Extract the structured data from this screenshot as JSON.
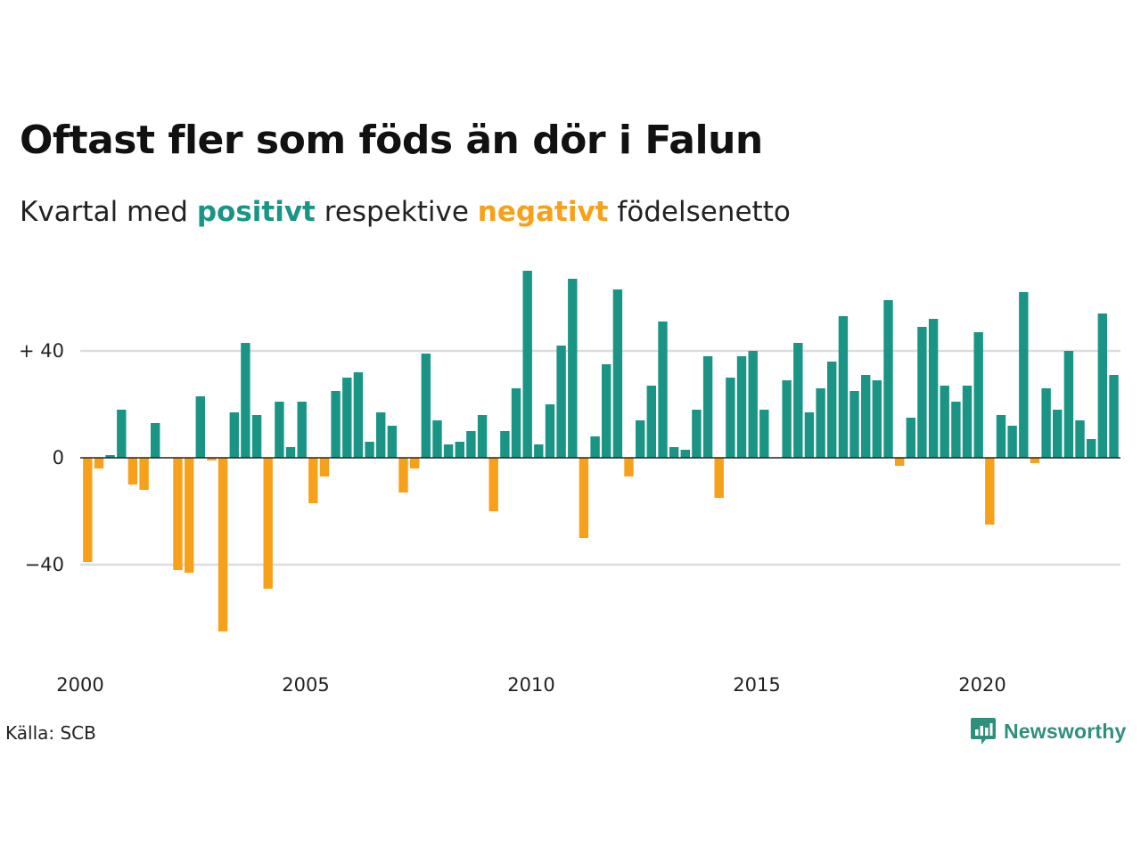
{
  "title": "Oftast fler som föds än dör i Falun",
  "subtitle": {
    "prefix": "Kvartal med",
    "positive": "positivt",
    "middle": "respektive",
    "negative": "negativt",
    "suffix": "födelsenetto"
  },
  "source": "Källa: SCB",
  "brand": {
    "name": "Newsworthy",
    "icon": "newsworthy-logo-icon"
  },
  "colors": {
    "positive": "#1a9585",
    "negative": "#f7a11a",
    "grid": "#dddddd",
    "zero": "#222222"
  },
  "chart_data": {
    "type": "bar",
    "title": "",
    "xlabel": "",
    "ylabel": "",
    "x_start": 2000,
    "period": "quarter",
    "ylim": [
      -70,
      70
    ],
    "yticks": [
      {
        "value": 40,
        "label": "+ 40"
      },
      {
        "value": 0,
        "label": "0"
      },
      {
        "value": -40,
        "label": "−40"
      }
    ],
    "xticks": [
      {
        "value": 2000,
        "label": "2000"
      },
      {
        "value": 2005,
        "label": "2005"
      },
      {
        "value": 2010,
        "label": "2010"
      },
      {
        "value": 2015,
        "label": "2015"
      },
      {
        "value": 2020,
        "label": "2020"
      }
    ],
    "grid": true,
    "values": [
      -39,
      -4,
      1,
      18,
      -10,
      -12,
      13,
      0,
      -42,
      -43,
      23,
      -1,
      -65,
      17,
      43,
      16,
      -49,
      21,
      4,
      21,
      -17,
      -7,
      25,
      30,
      32,
      6,
      17,
      12,
      -13,
      -4,
      39,
      14,
      5,
      6,
      10,
      16,
      -20,
      10,
      26,
      70,
      5,
      20,
      42,
      67,
      -30,
      8,
      35,
      63,
      -7,
      14,
      27,
      51,
      4,
      3,
      18,
      38,
      -15,
      30,
      38,
      40,
      18,
      0,
      29,
      43,
      17,
      26,
      36,
      53,
      25,
      31,
      29,
      59,
      -3,
      15,
      49,
      52,
      27,
      21,
      27,
      47,
      -25,
      16,
      12,
      62,
      -2,
      26,
      18,
      40,
      14,
      7,
      54,
      31
    ]
  }
}
